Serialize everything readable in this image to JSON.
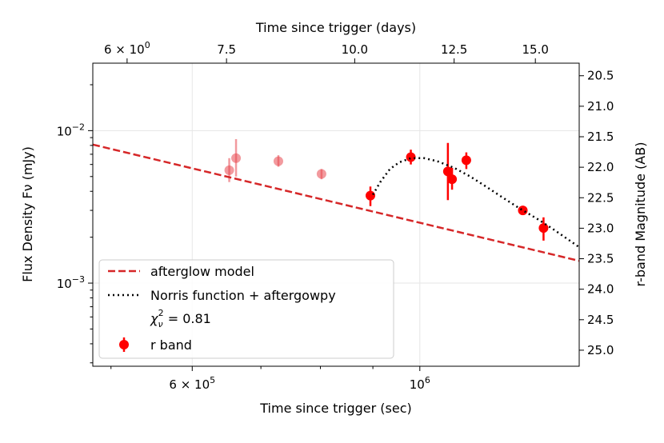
{
  "chart_data": {
    "type": "scatter",
    "title": "",
    "xlabel_bottom": "Time since trigger (sec)",
    "xlabel_top": "Time since trigger (days)",
    "ylabel_left": "Flux Density Fν (mJy)",
    "ylabel_right": "r-band Magnitude (AB)",
    "x_scale": "log",
    "y_scale": "log",
    "xlim_sec": [
      480000,
      1430000
    ],
    "ylim_mjy": [
      0.000285,
      0.0277
    ],
    "x_ticks_bottom": [
      {
        "value": 600000,
        "base": "6 × 10",
        "exp": "5"
      },
      {
        "value": 1000000,
        "base": "10",
        "exp": "6"
      }
    ],
    "x_ticks_top": [
      {
        "value": 6.0,
        "label": "6 × 10",
        "exp": "0"
      },
      {
        "value": 7.5,
        "label": "7.5"
      },
      {
        "value": 10.0,
        "label": "10.0"
      },
      {
        "value": 12.5,
        "label": "12.5"
      },
      {
        "value": 15.0,
        "label": "15.0"
      }
    ],
    "y_ticks_left": [
      {
        "value": 0.01,
        "base": "10",
        "exp": "−2"
      },
      {
        "value": 0.001,
        "base": "10",
        "exp": "−3"
      }
    ],
    "y_ticks_right": [
      "20.5",
      "21.0",
      "21.5",
      "22.0",
      "22.5",
      "23.0",
      "23.5",
      "24.0",
      "24.5",
      "25.0"
    ],
    "grid": true,
    "legend_position": "lower-left",
    "legend": {
      "afterglow": "afterglow model",
      "norris": " Norris function + aftergowpy",
      "chi_prefix": "χ",
      "chi_sub": "ν",
      "chi_sup": "2",
      "chi_value": " = 0.81",
      "rband": "r band"
    },
    "series": [
      {
        "kind": "points",
        "legend_key": "rband",
        "color": "#ff0000",
        "points": [
          {
            "x": 895000,
            "y": 0.00375,
            "ylo": 0.0032,
            "yhi": 0.0043
          },
          {
            "x": 980000,
            "y": 0.0067,
            "ylo": 0.006,
            "yhi": 0.0075
          },
          {
            "x": 1065000,
            "y": 0.0054,
            "ylo": 0.0035,
            "yhi": 0.0083
          },
          {
            "x": 1075000,
            "y": 0.0048,
            "ylo": 0.0041,
            "yhi": 0.0057
          },
          {
            "x": 1110000,
            "y": 0.0064,
            "ylo": 0.0056,
            "yhi": 0.0072
          },
          {
            "x": 1260000,
            "y": 0.003,
            "ylo": 0.0029,
            "yhi": 0.0031
          },
          {
            "x": 1320000,
            "y": 0.0023,
            "ylo": 0.0019,
            "yhi": 0.0027
          }
        ]
      },
      {
        "kind": "points-faded",
        "color": "#e8474f",
        "points": [
          {
            "x": 652000,
            "y": 0.0055,
            "ylo": 0.0046,
            "yhi": 0.0066
          },
          {
            "x": 662000,
            "y": 0.0066,
            "ylo": 0.005,
            "yhi": 0.0088
          },
          {
            "x": 728000,
            "y": 0.0063,
            "ylo": 0.0058,
            "yhi": 0.0069
          },
          {
            "x": 802000,
            "y": 0.0052,
            "ylo": 0.0048,
            "yhi": 0.0056
          }
        ]
      },
      {
        "kind": "line",
        "legend_key": "afterglow",
        "style": "dashed",
        "color": "#d62728",
        "points": [
          {
            "x": 480000,
            "y": 0.0081
          },
          {
            "x": 1430000,
            "y": 0.0014
          }
        ]
      },
      {
        "kind": "line",
        "legend_key": "norris",
        "style": "dotted",
        "color": "#000000",
        "points": [
          {
            "x": 900000,
            "y": 0.0038
          },
          {
            "x": 915000,
            "y": 0.0046
          },
          {
            "x": 935000,
            "y": 0.0056
          },
          {
            "x": 955000,
            "y": 0.0062
          },
          {
            "x": 980000,
            "y": 0.0066
          },
          {
            "x": 1010000,
            "y": 0.0066
          },
          {
            "x": 1040000,
            "y": 0.0063
          },
          {
            "x": 1080000,
            "y": 0.0057
          },
          {
            "x": 1120000,
            "y": 0.005
          },
          {
            "x": 1160000,
            "y": 0.0043
          },
          {
            "x": 1200000,
            "y": 0.0037
          },
          {
            "x": 1250000,
            "y": 0.0031
          },
          {
            "x": 1300000,
            "y": 0.00265
          },
          {
            "x": 1350000,
            "y": 0.00225
          },
          {
            "x": 1400000,
            "y": 0.0019
          },
          {
            "x": 1430000,
            "y": 0.00172
          }
        ]
      }
    ]
  }
}
